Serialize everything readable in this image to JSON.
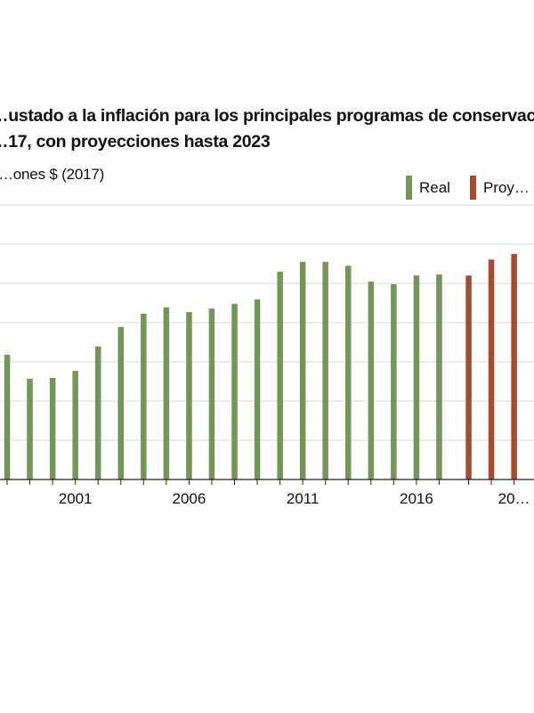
{
  "header": {
    "title_line1": "…ustado a la inflación para los principales programas de conservac…",
    "title_line2": "…17, con proyecciones hasta 2023",
    "y_unit_label": "…ones $ (2017)"
  },
  "legend": [
    {
      "label": "Real",
      "color": "#739559"
    },
    {
      "label": "Proy…",
      "color": "#a54b30"
    }
  ],
  "chart_data": {
    "type": "bar",
    "title": "…ustado a la inflación para los principales programas de conservac… …17, con proyecciones hasta 2023",
    "ylabel": "…ones $ (2017)",
    "xlabel": "",
    "y_units_note": "Y-axis tick labels are cropped out of view; values expressed in gridline units (1 unit = 1 gridline interval).",
    "ylim": [
      0,
      7
    ],
    "grid": true,
    "legend_position": "top-right",
    "x_tick_labels": [
      "2001",
      "2006",
      "2011",
      "2016",
      "20…"
    ],
    "categories": [
      "1998",
      "1999",
      "2000",
      "2001",
      "2002",
      "2003",
      "2004",
      "2005",
      "2006",
      "2007",
      "2008",
      "2009",
      "2010",
      "2011",
      "2012",
      "2013",
      "2014",
      "2015",
      "2016",
      "2017",
      "2018",
      "2019",
      "2020"
    ],
    "series": [
      {
        "name": "Real",
        "color": "#739559",
        "values": [
          3.18,
          2.57,
          2.59,
          2.77,
          3.39,
          3.89,
          4.23,
          4.39,
          4.27,
          4.36,
          4.48,
          4.59,
          5.3,
          5.55,
          5.55,
          5.45,
          5.05,
          4.98,
          5.2,
          5.23,
          null,
          null,
          null
        ]
      },
      {
        "name": "Proyecciones",
        "color": "#a54b30",
        "values": [
          null,
          null,
          null,
          null,
          null,
          null,
          null,
          null,
          null,
          null,
          null,
          null,
          null,
          null,
          null,
          null,
          null,
          null,
          null,
          null,
          5.2,
          5.61,
          5.75
        ]
      }
    ]
  }
}
